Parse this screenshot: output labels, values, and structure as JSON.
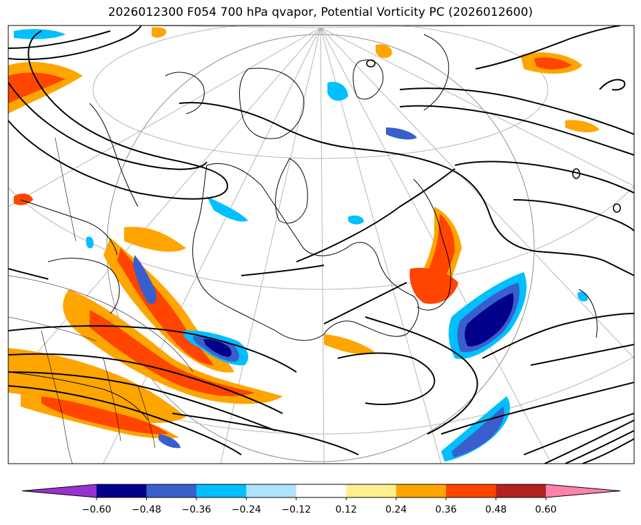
{
  "title": "2026012300 F054 700 hPa qvapor, Potential Vorticity PC (2026012600)",
  "colorbar": {
    "extend": "both",
    "colors": [
      "#9932cc",
      "#00008b",
      "#3a5fcd",
      "#00bfff",
      "#b0e2ff",
      "#ffffff",
      "#fff08f",
      "#ffa500",
      "#ff4500",
      "#b22222",
      "#ff82ab"
    ],
    "tick_labels": [
      "−0.60",
      "−0.48",
      "−0.36",
      "−0.24",
      "−0.12",
      "0.12",
      "0.24",
      "0.36",
      "0.48",
      "0.60"
    ]
  },
  "map": {
    "projection": "polar stereographic",
    "features": [
      "coastlines",
      "country borders",
      "state/province borders",
      "lat/lon graticule",
      "contours"
    ],
    "shading": "qvapor potential vorticity PC"
  }
}
